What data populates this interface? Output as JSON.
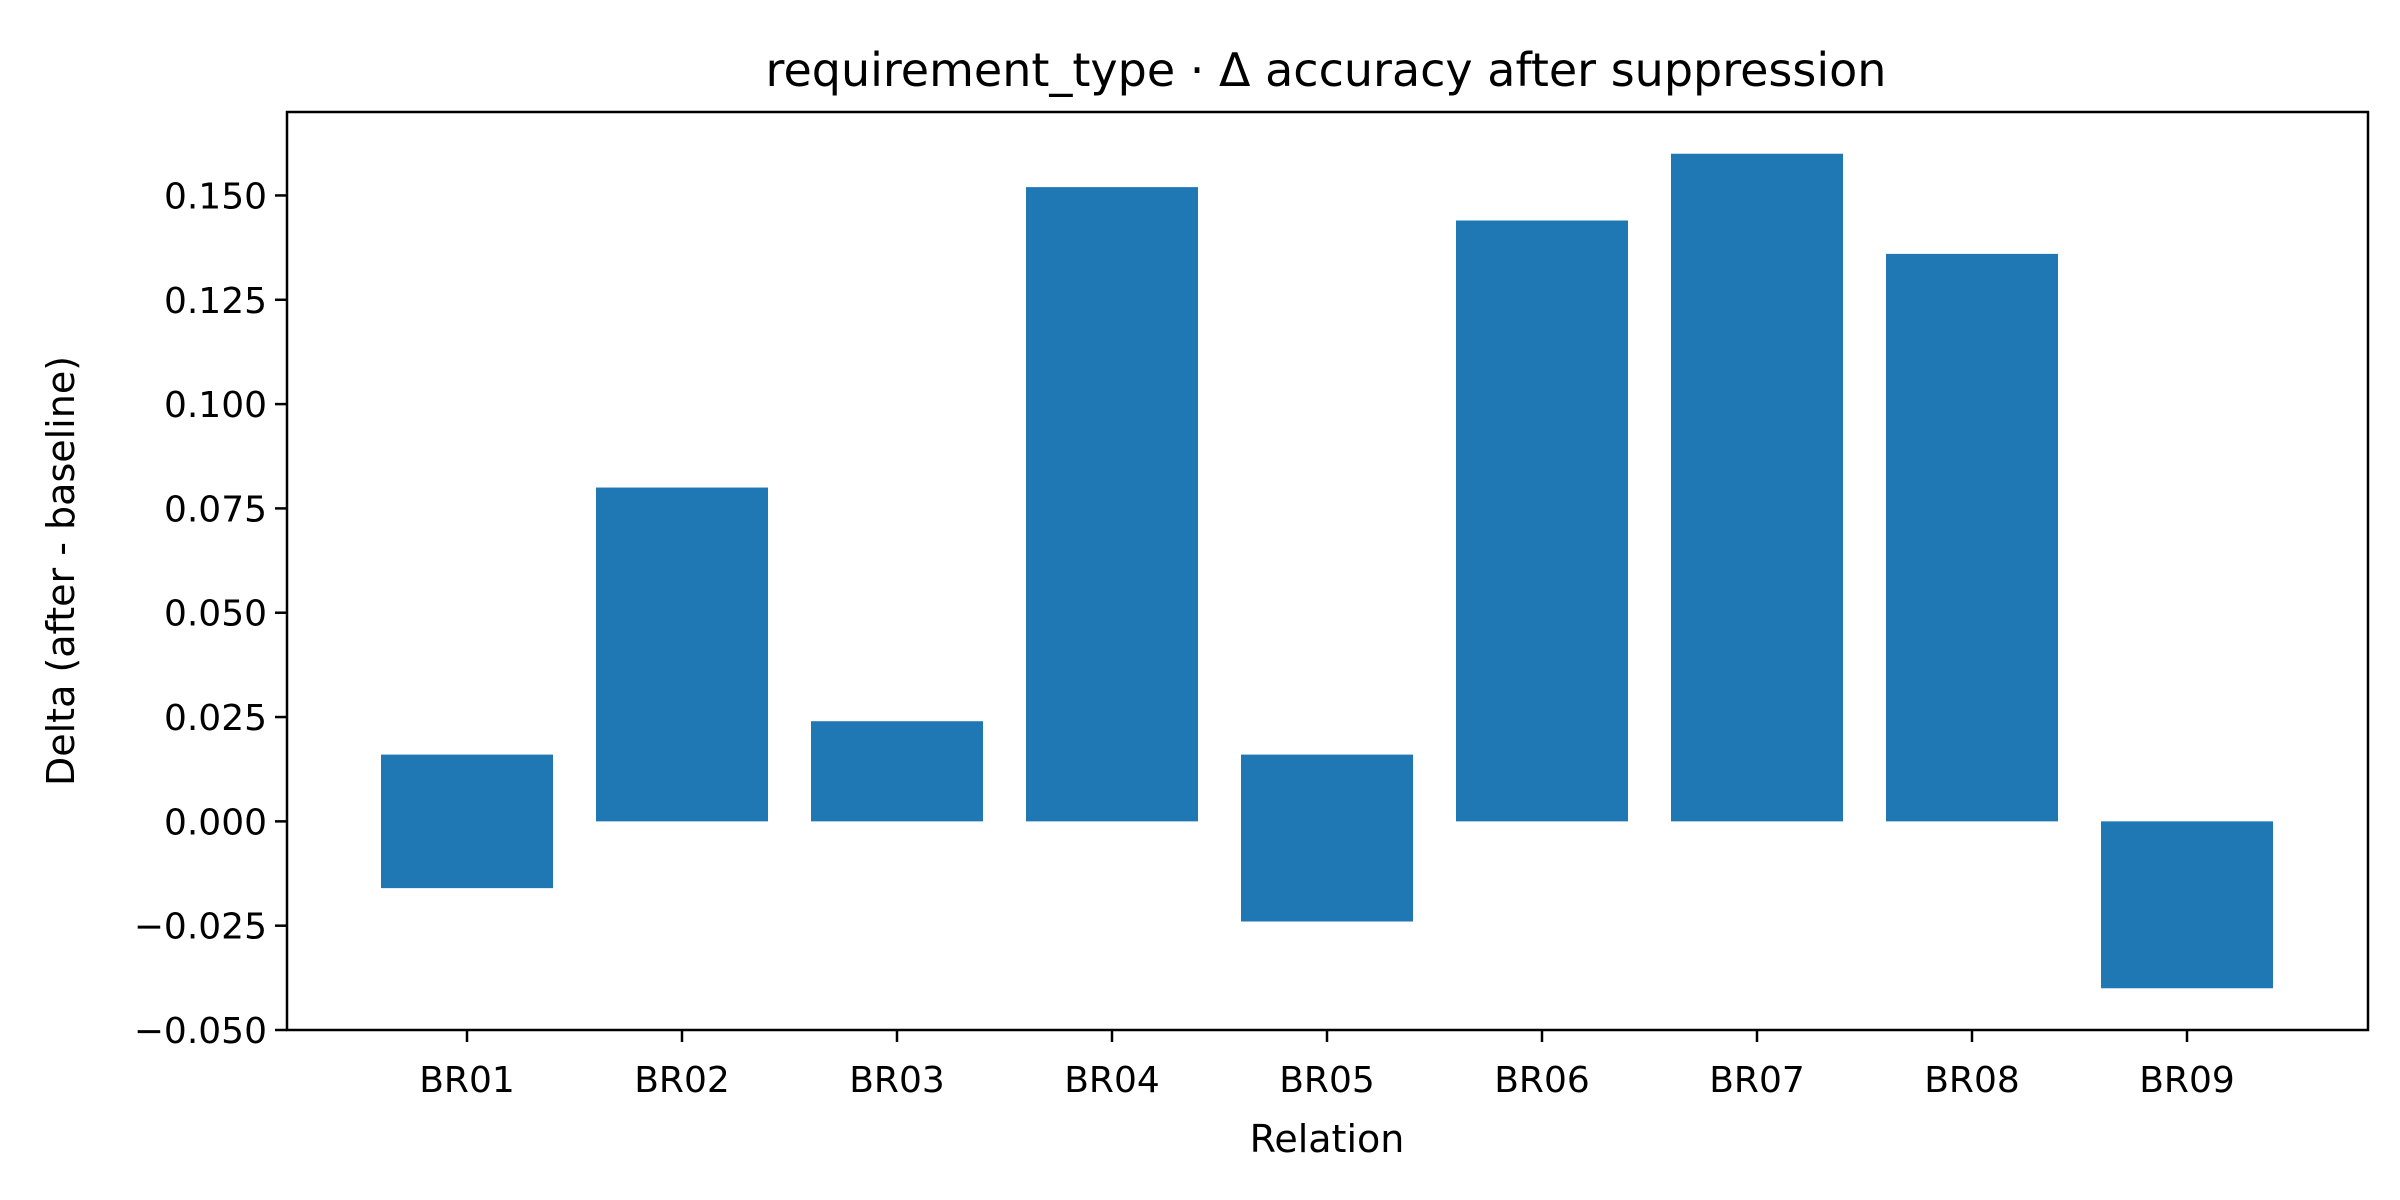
{
  "chart_data": {
    "type": "bar",
    "title": "requirement_type · Δ accuracy after suppression",
    "xlabel": "Relation",
    "ylabel": "Delta (after - baseline)",
    "categories": [
      "BR01",
      "BR02",
      "BR03",
      "BR04",
      "BR05",
      "BR06",
      "BR07",
      "BR08",
      "BR09"
    ],
    "bars": [
      {
        "bottom": -0.016,
        "top": 0.016
      },
      {
        "bottom": 0.0,
        "top": 0.08
      },
      {
        "bottom": 0.0,
        "top": 0.024
      },
      {
        "bottom": 0.0,
        "top": 0.152
      },
      {
        "bottom": -0.024,
        "top": 0.016
      },
      {
        "bottom": 0.0,
        "top": 0.144
      },
      {
        "bottom": 0.0,
        "top": 0.16
      },
      {
        "bottom": 0.0,
        "top": 0.136
      },
      {
        "bottom": -0.04,
        "top": 0.0
      }
    ],
    "ylim": [
      -0.05,
      0.17
    ],
    "yticks": [
      -0.05,
      -0.025,
      0.0,
      0.025,
      0.05,
      0.075,
      0.1,
      0.125,
      0.15
    ],
    "ytick_labels": [
      "−0.050",
      "−0.025",
      "0.000",
      "0.025",
      "0.050",
      "0.075",
      "0.100",
      "0.125",
      "0.150"
    ],
    "bar_color": "#1f77b4",
    "grid": false,
    "legend": "none"
  }
}
